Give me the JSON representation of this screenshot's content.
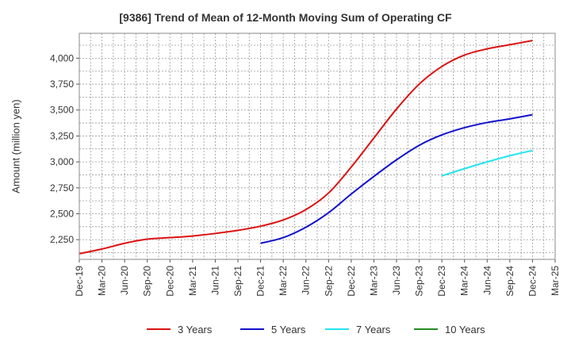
{
  "chart_data": {
    "type": "line",
    "title": "[9386]  Trend of Mean of 12-Month Moving Sum of Operating CF",
    "xlabel": "",
    "ylabel": "Amount (million yen)",
    "ylim": [
      2060,
      4240
    ],
    "yticks": [
      2250,
      2500,
      2750,
      3000,
      3250,
      3500,
      3750,
      4000
    ],
    "ytick_labels": [
      "2,250",
      "2,500",
      "2,750",
      "3,000",
      "3,250",
      "3,500",
      "3,750",
      "4,000"
    ],
    "categories": [
      "Dec-19",
      "Mar-20",
      "Jun-20",
      "Sep-20",
      "Dec-20",
      "Mar-21",
      "Jun-21",
      "Sep-21",
      "Dec-21",
      "Mar-22",
      "Jun-22",
      "Sep-22",
      "Dec-22",
      "Mar-23",
      "Jun-23",
      "Sep-23",
      "Dec-23",
      "Mar-24",
      "Jun-24",
      "Sep-24",
      "Dec-24",
      "Mar-25"
    ],
    "grid": true,
    "series": [
      {
        "name": "3 Years",
        "color": "#dd1111",
        "values": [
          2115,
          2160,
          2215,
          2255,
          2270,
          2285,
          2310,
          2340,
          2380,
          2440,
          2540,
          2700,
          2950,
          3230,
          3510,
          3750,
          3920,
          4030,
          4090,
          4130,
          4170,
          null
        ]
      },
      {
        "name": "5 Years",
        "color": "#1111cc",
        "values": [
          null,
          null,
          null,
          null,
          null,
          null,
          null,
          null,
          2215,
          2270,
          2370,
          2510,
          2690,
          2860,
          3020,
          3160,
          3260,
          3330,
          3380,
          3415,
          3455,
          null
        ]
      },
      {
        "name": "7 Years",
        "color": "#22e5ee",
        "values": [
          null,
          null,
          null,
          null,
          null,
          null,
          null,
          null,
          null,
          null,
          null,
          null,
          null,
          null,
          null,
          null,
          2865,
          2935,
          3000,
          3060,
          3110,
          null
        ]
      },
      {
        "name": "10 Years",
        "color": "#228b22",
        "values": [
          null,
          null,
          null,
          null,
          null,
          null,
          null,
          null,
          null,
          null,
          null,
          null,
          null,
          null,
          null,
          null,
          null,
          null,
          null,
          null,
          null,
          null
        ]
      }
    ],
    "legend_position": "bottom"
  }
}
